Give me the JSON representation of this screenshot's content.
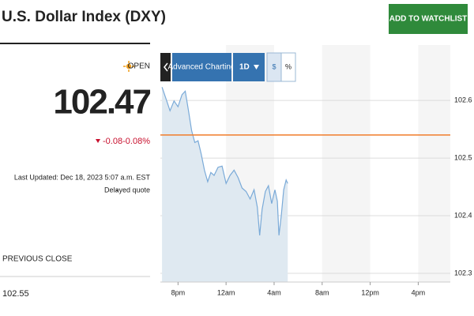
{
  "header": {
    "title": "U.S. Dollar Index (DXY)",
    "button": "ADD TO WATCHLIST"
  },
  "quote": {
    "status": "OPEN",
    "price": "102.47",
    "change": "-0.08",
    "change_percent": "-0.08%",
    "last_updated": "Last Updated: Dec 18, 2023 5:07 a.m. EST",
    "delayed": "Delayed quote"
  },
  "previous_close": {
    "label": "PREVIOUS CLOSE",
    "value": "102.55"
  },
  "toolbar": {
    "chart_link": "Advanced Charting",
    "range": "1D",
    "dollar": "$",
    "percent": "%"
  },
  "chart_data": {
    "type": "line",
    "color": "#7aaad8",
    "fill": "#dfe9f1",
    "grid": true,
    "x": [
      18.67,
      19.0,
      19.33,
      19.67,
      20.0,
      20.33,
      20.6,
      20.87,
      21.13,
      21.4,
      21.67,
      21.93,
      22.2,
      22.47,
      22.73,
      23.0,
      23.33,
      23.67,
      24.0,
      24.33,
      24.67,
      25.0,
      25.33,
      25.67,
      26.0,
      26.33,
      26.6,
      26.8,
      27.0,
      27.27,
      27.53,
      27.8,
      28.07,
      28.27,
      28.4,
      28.6,
      28.8,
      29.0,
      29.13
    ],
    "values": [
      102.623,
      102.603,
      102.582,
      102.599,
      102.589,
      102.61,
      102.616,
      102.582,
      102.548,
      102.527,
      102.53,
      102.507,
      102.479,
      102.459,
      102.475,
      102.47,
      102.484,
      102.486,
      102.456,
      102.47,
      102.479,
      102.466,
      102.448,
      102.442,
      102.429,
      102.445,
      102.415,
      102.366,
      102.411,
      102.442,
      102.452,
      102.421,
      102.445,
      102.425,
      102.366,
      102.401,
      102.445,
      102.462,
      102.456
    ],
    "reference_line": {
      "value": 102.54,
      "color": "#f07c2a"
    },
    "xlim": [
      18.53,
      42.67
    ],
    "xticks": [
      {
        "value": 20,
        "label": "8pm"
      },
      {
        "value": 24,
        "label": "12am"
      },
      {
        "value": 28,
        "label": "4am"
      },
      {
        "value": 32,
        "label": "8am"
      },
      {
        "value": 36,
        "label": "12pm"
      },
      {
        "value": 40,
        "label": "4pm"
      }
    ],
    "ylim": [
      102.285,
      102.696
    ],
    "yticks": [
      102.3,
      102.4,
      102.5,
      102.6
    ]
  }
}
